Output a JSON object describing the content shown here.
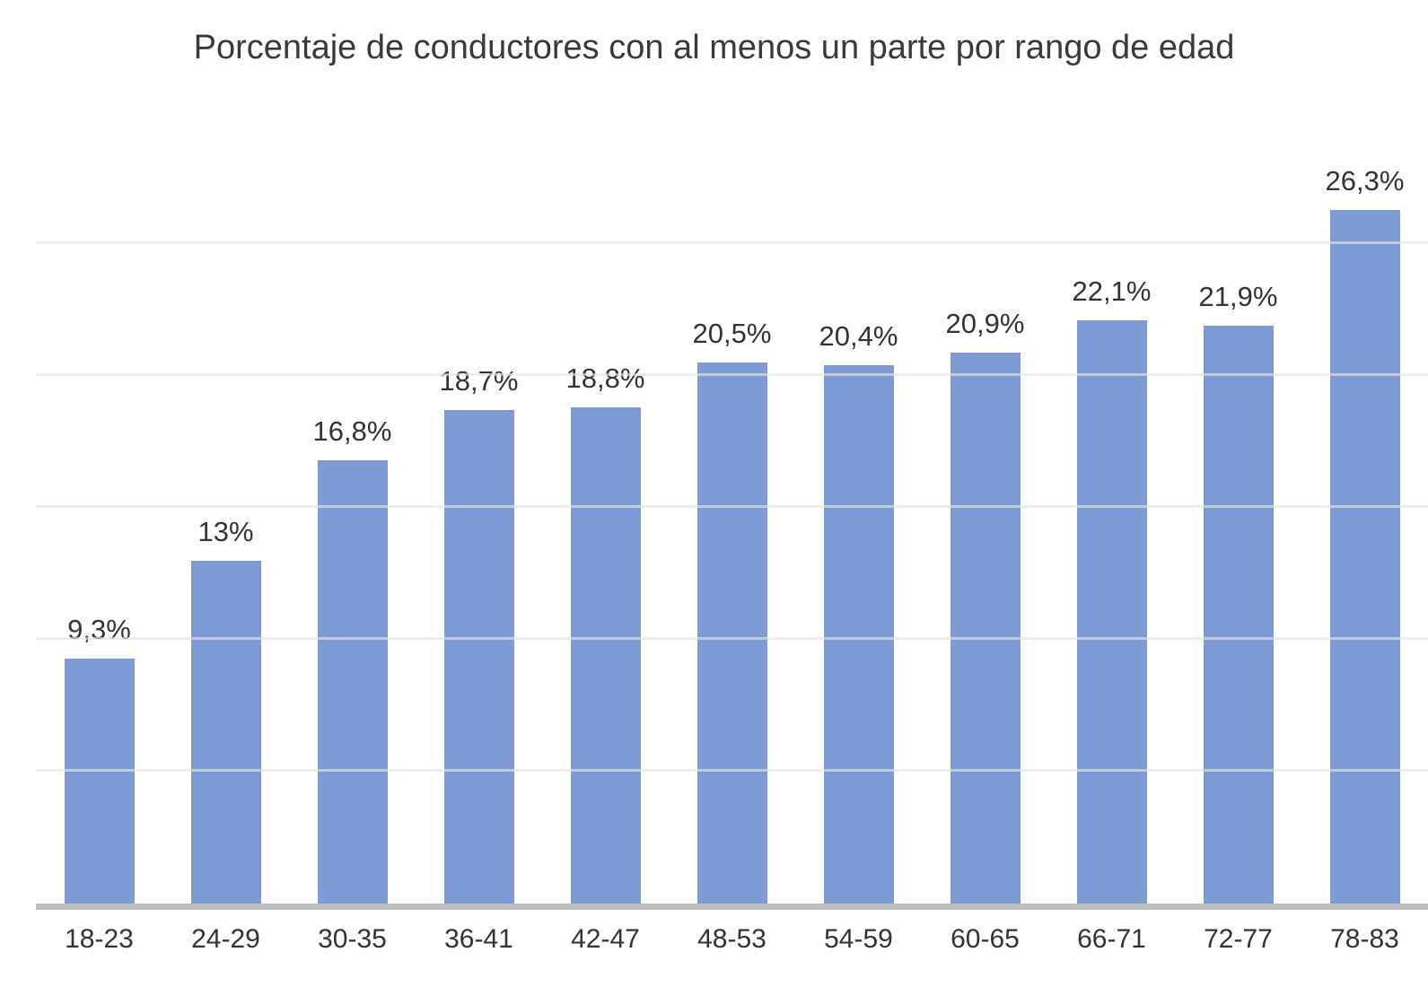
{
  "chart_data": {
    "type": "bar",
    "title": "Porcentaje de conductores con al menos un parte por rango de edad",
    "categories": [
      "18-23",
      "24-29",
      "30-35",
      "36-41",
      "42-47",
      "48-53",
      "54-59",
      "60-65",
      "66-71",
      "72-77",
      "78-83"
    ],
    "values": [
      9.3,
      13,
      16.8,
      18.7,
      18.8,
      20.5,
      20.4,
      20.9,
      22.1,
      21.9,
      26.3
    ],
    "value_labels": [
      "9,3%",
      "13%",
      "16,8%",
      "18,7%",
      "18,8%",
      "20,5%",
      "20,4%",
      "20,9%",
      "22,1%",
      "21,9%",
      "26,3%"
    ],
    "xlabel": "",
    "ylabel": "",
    "ylim": [
      0,
      29.6
    ],
    "y_gridlines": [
      5,
      10,
      15,
      20,
      25
    ],
    "grid": "horizontal",
    "legend": "none",
    "colors": {
      "bar": "#7E9AD4",
      "gridline": "rgba(228,228,228,0.65)",
      "axis_line": "#BDBDBD",
      "value_label": "#333333",
      "tick_label": "#333333",
      "title": "#3A3A3A",
      "background": "#FFFFFF"
    }
  }
}
